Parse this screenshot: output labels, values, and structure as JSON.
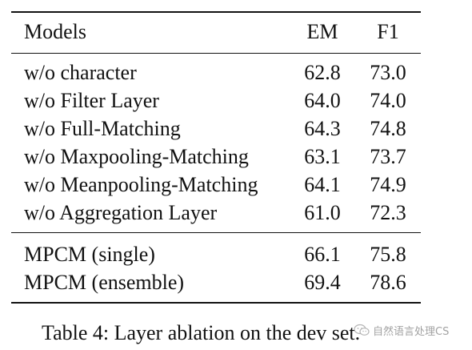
{
  "table": {
    "columns": [
      "Models",
      "EM",
      "F1"
    ],
    "groups": [
      [
        {
          "model": "w/o character",
          "em": "62.8",
          "f1": "73.0"
        },
        {
          "model": "w/o Filter Layer",
          "em": "64.0",
          "f1": "74.0"
        },
        {
          "model": "w/o Full-Matching",
          "em": "64.3",
          "f1": "74.8"
        },
        {
          "model": "w/o Maxpooling-Matching",
          "em": "63.1",
          "f1": "73.7"
        },
        {
          "model": "w/o Meanpooling-Matching",
          "em": "64.1",
          "f1": "74.9"
        },
        {
          "model": "w/o Aggregation Layer",
          "em": "61.0",
          "f1": "72.3"
        }
      ],
      [
        {
          "model": "MPCM (single)",
          "em": "66.1",
          "f1": "75.8"
        },
        {
          "model": "MPCM (ensemble)",
          "em": "69.4",
          "f1": "78.6"
        }
      ]
    ]
  },
  "caption": "Table 4: Layer ablation on the dev set.",
  "watermark": {
    "text": "自然语言处理CS",
    "icon": "wechat-icon"
  }
}
